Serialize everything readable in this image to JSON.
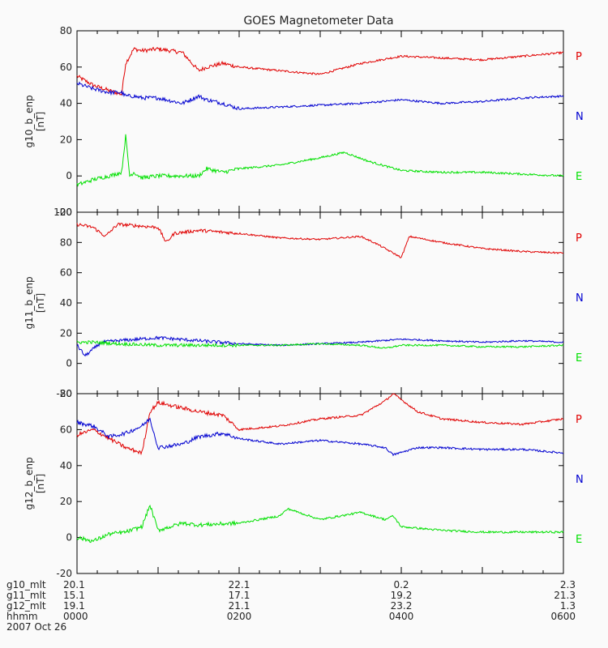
{
  "chart_data": {
    "type": "line",
    "title": "GOES Magnetometer Data",
    "x_range_hours": [
      0,
      6
    ],
    "panels": [
      {
        "ylabel": "g10_b_enp",
        "yunit": "[nT]",
        "ylim": [
          -20,
          80
        ],
        "yticks": [
          -20,
          0,
          20,
          40,
          60,
          80
        ],
        "series": [
          {
            "name": "P",
            "color": "#e00000",
            "t": [
              0,
              0.2,
              0.4,
              0.55,
              0.6,
              0.7,
              0.8,
              1.0,
              1.3,
              1.5,
              1.6,
              1.8,
              2.0,
              2.5,
              3.0,
              3.5,
              4.0,
              4.5,
              5.0,
              5.5,
              6.0
            ],
            "v": [
              55,
              50,
              47,
              45,
              62,
              70,
              69,
              70,
              68,
              58,
              60,
              62,
              60,
              58,
              56,
              62,
              66,
              65,
              64,
              66,
              68
            ]
          },
          {
            "name": "N",
            "color": "#0000d0",
            "t": [
              0,
              0.2,
              0.4,
              0.55,
              0.6,
              0.7,
              0.8,
              1.0,
              1.3,
              1.5,
              1.6,
              1.8,
              2.0,
              2.5,
              3.0,
              3.5,
              4.0,
              4.5,
              5.0,
              5.5,
              6.0
            ],
            "v": [
              51,
              48,
              46,
              46,
              44,
              44,
              43,
              43,
              40,
              44,
              42,
              40,
              37,
              38,
              39,
              40,
              42,
              40,
              41,
              43,
              44
            ]
          },
          {
            "name": "E",
            "color": "#00e000",
            "t": [
              0,
              0.2,
              0.4,
              0.55,
              0.6,
              0.65,
              0.7,
              0.8,
              1.0,
              1.3,
              1.5,
              1.6,
              1.8,
              2.0,
              2.5,
              3.0,
              3.3,
              3.6,
              4.0,
              4.5,
              5.0,
              5.5,
              6.0
            ],
            "v": [
              -5,
              -2,
              0,
              2,
              22,
              0,
              2,
              -1,
              0,
              0,
              0,
              4,
              2,
              4,
              6,
              10,
              13,
              8,
              3,
              2,
              2,
              1,
              0
            ]
          }
        ],
        "legend": [
          "P",
          "N",
          "E"
        ]
      },
      {
        "ylabel": "g11_b_enp",
        "yunit": "[nT]",
        "ylim": [
          -20,
          100
        ],
        "yticks": [
          -20,
          0,
          20,
          40,
          60,
          80,
          100
        ],
        "series": [
          {
            "name": "P",
            "color": "#e00000",
            "t": [
              0,
              0.2,
              0.35,
              0.5,
              1.0,
              1.1,
              1.2,
              1.5,
              2.0,
              2.5,
              3.0,
              3.5,
              3.7,
              4.0,
              4.1,
              4.5,
              5.0,
              5.5,
              6.0
            ],
            "v": [
              92,
              90,
              84,
              92,
              90,
              80,
              86,
              88,
              86,
              83,
              82,
              84,
              79,
              70,
              84,
              80,
              76,
              74,
              73
            ]
          },
          {
            "name": "N",
            "color": "#0000d0",
            "t": [
              0,
              0.1,
              0.3,
              0.5,
              1.0,
              1.5,
              2.0,
              2.5,
              3.0,
              3.5,
              4.0,
              4.5,
              5.0,
              5.5,
              6.0
            ],
            "v": [
              12,
              5,
              14,
              15,
              17,
              15,
              13,
              12,
              13,
              14,
              16,
              15,
              14,
              15,
              14
            ]
          },
          {
            "name": "E",
            "color": "#00e000",
            "t": [
              0,
              0.2,
              0.5,
              1.0,
              1.5,
              2.0,
              2.5,
              3.0,
              3.5,
              3.8,
              4.0,
              4.5,
              5.0,
              5.5,
              6.0
            ],
            "v": [
              14,
              14,
              13,
              12,
              12,
              12,
              12,
              13,
              12,
              10,
              12,
              12,
              11,
              11,
              12
            ]
          }
        ],
        "legend": [
          "P",
          "N",
          "E"
        ]
      },
      {
        "ylabel": "g12_b_enp",
        "yunit": "[nT]",
        "ylim": [
          -20,
          80
        ],
        "yticks": [
          -20,
          0,
          20,
          40,
          60,
          80
        ],
        "series": [
          {
            "name": "P",
            "color": "#e00000",
            "t": [
              0,
              0.2,
              0.4,
              0.6,
              0.8,
              0.9,
              1.0,
              1.3,
              1.5,
              1.8,
              2.0,
              2.5,
              3.0,
              3.5,
              3.8,
              3.9,
              4.2,
              4.5,
              5.0,
              5.5,
              6.0
            ],
            "v": [
              57,
              60,
              55,
              50,
              47,
              70,
              75,
              72,
              70,
              68,
              60,
              62,
              66,
              68,
              76,
              80,
              70,
              66,
              64,
              63,
              66
            ]
          },
          {
            "name": "N",
            "color": "#0000d0",
            "t": [
              0,
              0.2,
              0.4,
              0.6,
              0.8,
              0.9,
              1.0,
              1.3,
              1.5,
              1.8,
              2.0,
              2.5,
              3.0,
              3.5,
              3.8,
              3.9,
              4.2,
              4.5,
              5.0,
              5.5,
              6.0
            ],
            "v": [
              64,
              62,
              56,
              58,
              62,
              66,
              50,
              52,
              56,
              58,
              55,
              52,
              54,
              52,
              50,
              46,
              50,
              50,
              49,
              49,
              47
            ]
          },
          {
            "name": "E",
            "color": "#00e000",
            "t": [
              0,
              0.2,
              0.4,
              0.6,
              0.8,
              0.9,
              1.0,
              1.3,
              1.5,
              2.0,
              2.5,
              2.6,
              3.0,
              3.5,
              3.8,
              3.9,
              4.0,
              4.5,
              5.0,
              5.5,
              6.0
            ],
            "v": [
              0,
              -2,
              2,
              3,
              6,
              18,
              4,
              8,
              7,
              8,
              12,
              16,
              10,
              14,
              10,
              12,
              6,
              4,
              3,
              3,
              3
            ]
          }
        ],
        "legend": [
          "P",
          "N",
          "E"
        ]
      }
    ],
    "x_axis_table": {
      "row_labels": [
        "g10_mlt",
        "g11_mlt",
        "g12_mlt",
        "hhmm"
      ],
      "date": "2007 Oct 26",
      "columns": [
        {
          "t": 0,
          "values": [
            "20.1",
            "15.1",
            "19.1",
            "0000"
          ]
        },
        {
          "t": 2,
          "values": [
            "22.1",
            "17.1",
            "21.1",
            "0200"
          ]
        },
        {
          "t": 4,
          "values": [
            "0.2",
            "19.2",
            "23.2",
            "0400"
          ]
        },
        {
          "t": 6,
          "values": [
            "2.3",
            "21.3",
            "1.3",
            "0600"
          ]
        }
      ]
    }
  }
}
